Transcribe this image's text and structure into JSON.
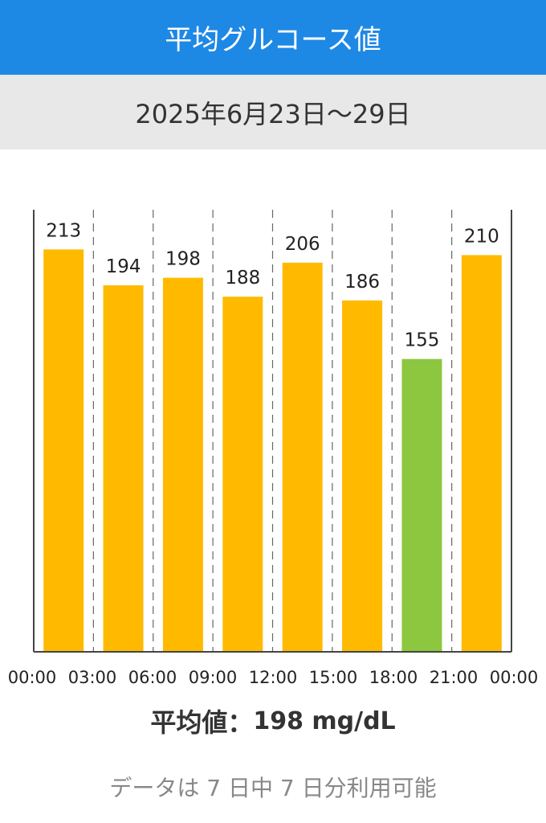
{
  "header": {
    "title": "平均グルコース値"
  },
  "date_range": "2025年6月23日〜29日",
  "summary": {
    "label": "平均値：",
    "value": "198 mg/dL"
  },
  "footer": {
    "availability": "データは 7 日中 7 日分利用可能"
  },
  "colors": {
    "header_bg": "#1e88e5",
    "bar_default": "#ffba00",
    "bar_in_range": "#8dc63f"
  },
  "chart_data": {
    "type": "bar",
    "title": "",
    "xlabel": "",
    "ylabel": "",
    "x_ticks": [
      "00:00",
      "03:00",
      "06:00",
      "09:00",
      "12:00",
      "15:00",
      "18:00",
      "21:00",
      "00:00"
    ],
    "categories": [
      "00:00",
      "03:00",
      "06:00",
      "09:00",
      "12:00",
      "15:00",
      "18:00",
      "21:00"
    ],
    "values": [
      213,
      194,
      198,
      188,
      206,
      186,
      155,
      210
    ],
    "bar_colors": [
      "#ffba00",
      "#ffba00",
      "#ffba00",
      "#ffba00",
      "#ffba00",
      "#ffba00",
      "#8dc63f",
      "#ffba00"
    ],
    "ylim": [
      0,
      234
    ],
    "grid": "vertical dashed"
  }
}
